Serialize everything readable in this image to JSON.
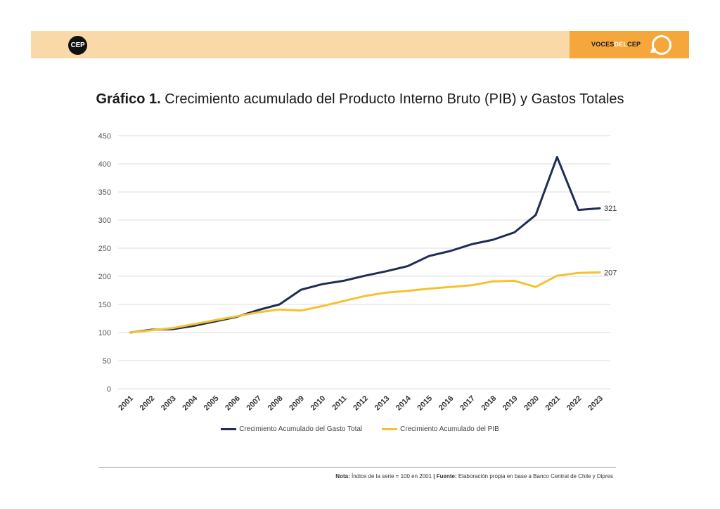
{
  "header": {
    "logo_left": "CEP",
    "logo_right_part1": "VOCES",
    "logo_right_part2": "DEL",
    "logo_right_part3": "CEP",
    "band_color": "#fad9a8",
    "accent_color": "#f5a73c"
  },
  "title": {
    "bold": "Gráfico 1.",
    "text": " Crecimiento acumulado del Producto Interno Bruto (PIB) y Gastos Totales"
  },
  "chart_data": {
    "type": "line",
    "title": "Gráfico 1. Crecimiento acumulado del Producto Interno Bruto (PIB) y Gastos Totales",
    "xlabel": "",
    "ylabel": "",
    "ylim": [
      0,
      450
    ],
    "yticks": [
      0,
      50,
      100,
      150,
      200,
      250,
      300,
      350,
      400,
      450
    ],
    "grid": true,
    "legend_position": "bottom",
    "x": [
      "2001",
      "2002",
      "2003",
      "2004",
      "2005",
      "2006",
      "2007",
      "2008",
      "2009",
      "2010",
      "2011",
      "2012",
      "2013",
      "2014",
      "2015",
      "2016",
      "2017",
      "2018",
      "2019",
      "2020",
      "2021",
      "2022",
      "2023"
    ],
    "series": [
      {
        "name": "Crecimiento Acumulado del Gasto Total",
        "color": "#1f2d52",
        "values": [
          100,
          105,
          106,
          112,
          120,
          128,
          140,
          150,
          176,
          186,
          192,
          201,
          209,
          218,
          236,
          245,
          257,
          265,
          278,
          309,
          412,
          318,
          321
        ],
        "end_label": "321"
      },
      {
        "name": "Crecimiento Acumulado del PIB",
        "color": "#f5c22f",
        "values": [
          100,
          104,
          108,
          115,
          122,
          129,
          136,
          141,
          139,
          147,
          156,
          165,
          171,
          174,
          178,
          181,
          184,
          191,
          192,
          181,
          201,
          206,
          207
        ],
        "end_label": "207"
      }
    ]
  },
  "footer": {
    "nota_label": "Nota:",
    "nota_text": " Índice de la serie = 100 en 2001 ",
    "separator": "|",
    "fuente_label": " Fuente:",
    "fuente_text": " Elaboración propia en base a Banco Central de Chile y Dipres"
  }
}
